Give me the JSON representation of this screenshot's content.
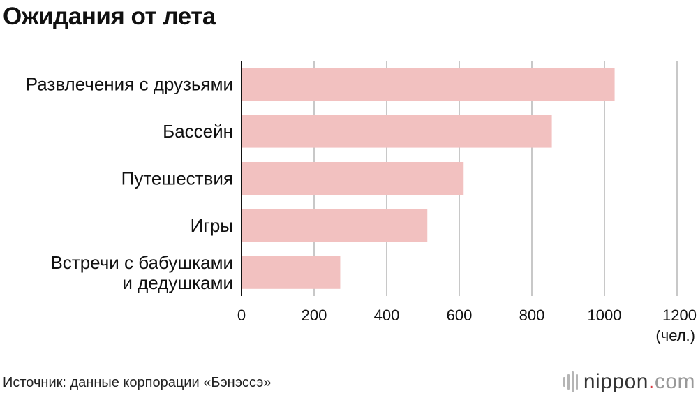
{
  "title": "Ожидания от лета",
  "source": "Источник: данные корпорации «Бэнэссэ»",
  "logo": {
    "name": "nippon",
    "dot": ".",
    "tld": "com"
  },
  "colors": {
    "bar": "#f2c1c0",
    "grid": "#c8c8c8",
    "axis": "#111111"
  },
  "chart_data": {
    "type": "bar",
    "orientation": "horizontal",
    "categories": [
      [
        "Развлечения с друзьями"
      ],
      [
        "Бассейн"
      ],
      [
        "Путешествия"
      ],
      [
        "Игры"
      ],
      [
        "Встречи с бабушками",
        "и дедушками"
      ]
    ],
    "values": [
      1028,
      855,
      612,
      512,
      272
    ],
    "xlim": [
      0,
      1200
    ],
    "xticks": [
      "0",
      "200",
      "400",
      "600",
      "800",
      "1000",
      "1200"
    ],
    "unit": "(чел.)",
    "grid": true
  }
}
